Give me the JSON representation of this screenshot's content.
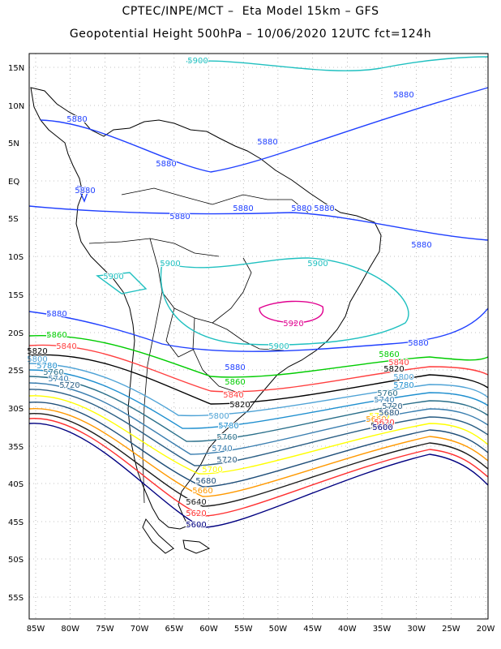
{
  "header": {
    "line1": "CPTEC/INPE/MCT –  Eta Model 15km – GFS",
    "line2": "Geopotential Height 500hPa – 10/06/2020 12UTC fct=124h"
  },
  "axes": {
    "lat_labels": [
      "15N",
      "10N",
      "5N",
      "EQ",
      "5S",
      "10S",
      "15S",
      "20S",
      "25S",
      "30S",
      "35S",
      "40S",
      "45S",
      "50S",
      "55S"
    ],
    "lon_labels": [
      "85W",
      "80W",
      "75W",
      "70W",
      "65W",
      "60W",
      "55W",
      "50W",
      "45W",
      "40W",
      "35W",
      "30W",
      "25W",
      "20W"
    ]
  },
  "colors": {
    "5600": "#000080",
    "5620": "#ff3030",
    "5640": "#1a1a1a",
    "5660": "#ff9900",
    "5680": "#1f4e79",
    "5700": "#ffff00",
    "5720": "#2b5f85",
    "5740": "#3b7fb0",
    "5760": "#2a6f8a",
    "5780": "#1f8fcf",
    "5800": "#4fa3d6",
    "5820": "#000000",
    "5840": "#ff4040",
    "5860": "#00cc00",
    "5880": "#2040ff",
    "5900": "#20c0c0",
    "5920": "#e0008f",
    "border": "#000000",
    "grid": "#888888"
  },
  "contours": [
    {
      "level": "5880",
      "labels": [
        "5880",
        "5880",
        "5880",
        "5880",
        "5880",
        "5880",
        "5880",
        "5880",
        "5880",
        "5880",
        "5880",
        "5880",
        "5880"
      ]
    },
    {
      "level": "5900",
      "labels": [
        "5900",
        "5900",
        "5900",
        "5900",
        "5900"
      ]
    },
    {
      "level": "5920",
      "labels": [
        "5920"
      ]
    },
    {
      "level": "5860",
      "labels": [
        "5860",
        "5860",
        "5860"
      ]
    },
    {
      "level": "5840",
      "labels": [
        "5840",
        "5840",
        "5840"
      ]
    },
    {
      "level": "5820",
      "labels": [
        "5820",
        "5820",
        "5820"
      ]
    },
    {
      "level": "5800",
      "labels": [
        "5800",
        "5800",
        "5800"
      ]
    },
    {
      "level": "5780",
      "labels": [
        "5780",
        "5780",
        "5780"
      ]
    },
    {
      "level": "5760",
      "labels": [
        "5760",
        "5760",
        "5760"
      ]
    },
    {
      "level": "5740",
      "labels": [
        "5740",
        "5740",
        "5740"
      ]
    },
    {
      "level": "5720",
      "labels": [
        "5720",
        "5720",
        "5720"
      ]
    },
    {
      "level": "5700",
      "labels": [
        "5700",
        "5700"
      ]
    },
    {
      "level": "5680",
      "labels": [
        "5680",
        "5680"
      ]
    },
    {
      "level": "5660",
      "labels": [
        "5660",
        "5660"
      ]
    },
    {
      "level": "5640",
      "labels": [
        "5640",
        "5640"
      ]
    },
    {
      "level": "5620",
      "labels": [
        "5620",
        "5620"
      ]
    },
    {
      "level": "5600",
      "labels": [
        "5600",
        "5600"
      ]
    }
  ]
}
